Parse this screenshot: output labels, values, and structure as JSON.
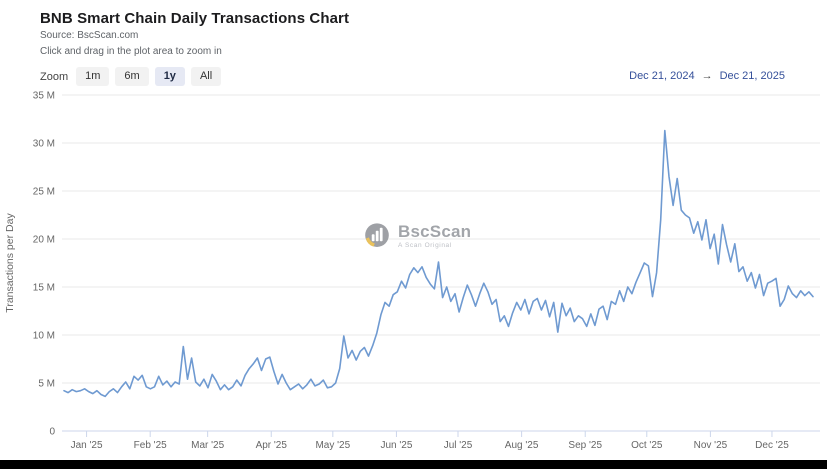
{
  "header": {
    "title": "BNB Smart Chain Daily Transactions Chart",
    "source": "Source: BscScan.com",
    "hint": "Click and drag in the plot area to zoom in"
  },
  "toolbar": {
    "zoom_label": "Zoom",
    "buttons": [
      {
        "label": "1m",
        "active": false
      },
      {
        "label": "6m",
        "active": false
      },
      {
        "label": "1y",
        "active": true
      },
      {
        "label": "All",
        "active": false
      }
    ]
  },
  "range": {
    "from": "Dec 21, 2024",
    "arrow": "→",
    "to": "Dec 21, 2025"
  },
  "watermark": {
    "name": "BscScan",
    "tagline": "A Scan Original"
  },
  "colors": {
    "line": "#6f9ad1",
    "grid": "#e9e9e9",
    "axis": "#ccd6eb",
    "tick_text": "#666666",
    "title": "#1c1c1e",
    "range_text": "#35509a",
    "watermark_gray": "#9b9ea3",
    "watermark_yellow": "#e9bd4f"
  },
  "chart_data": {
    "type": "line",
    "title": "BNB Smart Chain Daily Transactions Chart",
    "xlabel": "",
    "ylabel": "Transactions per Day",
    "unit": "millions of transactions per day",
    "ylim_millions": [
      0,
      35
    ],
    "grid": true,
    "legend": false,
    "y_ticks": [
      {
        "value": 0,
        "label": "0"
      },
      {
        "value": 5,
        "label": "5 M"
      },
      {
        "value": 10,
        "label": "10 M"
      },
      {
        "value": 15,
        "label": "15 M"
      },
      {
        "value": 20,
        "label": "20 M"
      },
      {
        "value": 25,
        "label": "25 M"
      },
      {
        "value": 30,
        "label": "30 M"
      },
      {
        "value": 35,
        "label": "35 M"
      }
    ],
    "x_ticks": [
      {
        "day": 11,
        "label": "Jan '25"
      },
      {
        "day": 42,
        "label": "Feb '25"
      },
      {
        "day": 70,
        "label": "Mar '25"
      },
      {
        "day": 101,
        "label": "Apr '25"
      },
      {
        "day": 131,
        "label": "May '25"
      },
      {
        "day": 162,
        "label": "Jun '25"
      },
      {
        "day": 192,
        "label": "Jul '25"
      },
      {
        "day": 223,
        "label": "Aug '25"
      },
      {
        "day": 254,
        "label": "Sep '25"
      },
      {
        "day": 284,
        "label": "Oct '25"
      },
      {
        "day": 315,
        "label": "Nov '25"
      },
      {
        "day": 345,
        "label": "Dec '25"
      }
    ],
    "x_range_days": 365,
    "series": [
      {
        "name": "Transactions per Day",
        "start_date": "Dec 21, 2024",
        "end_date": "Dec 21, 2025",
        "color": "#6f9ad1",
        "values_millions": [
          4.2,
          4.0,
          4.3,
          4.1,
          4.2,
          4.4,
          4.1,
          3.9,
          4.2,
          3.8,
          3.6,
          4.1,
          4.4,
          4.0,
          4.6,
          5.1,
          4.4,
          5.7,
          5.3,
          5.8,
          4.6,
          4.4,
          4.6,
          5.7,
          4.8,
          5.2,
          4.6,
          5.1,
          4.9,
          8.8,
          5.4,
          7.6,
          5.1,
          4.7,
          5.4,
          4.5,
          5.9,
          5.2,
          4.3,
          4.8,
          4.3,
          4.6,
          5.3,
          4.7,
          5.8,
          6.5,
          7.0,
          7.6,
          6.3,
          7.5,
          7.7,
          6.2,
          4.9,
          5.9,
          5.0,
          4.3,
          4.6,
          4.9,
          4.4,
          4.8,
          5.4,
          4.7,
          4.9,
          5.3,
          4.5,
          4.6,
          5.0,
          6.5,
          9.9,
          7.6,
          8.4,
          7.4,
          8.3,
          8.7,
          7.8,
          8.9,
          10.2,
          12.1,
          13.4,
          13.0,
          14.2,
          14.5,
          15.6,
          14.9,
          16.3,
          17.0,
          16.5,
          17.1,
          16.0,
          15.3,
          14.8,
          17.6,
          13.9,
          15.0,
          13.5,
          14.3,
          12.4,
          13.9,
          15.2,
          14.2,
          13.0,
          14.3,
          15.4,
          14.5,
          13.2,
          13.7,
          11.4,
          12.0,
          10.9,
          12.3,
          13.4,
          12.6,
          13.7,
          12.2,
          13.5,
          13.8,
          12.6,
          13.6,
          11.9,
          13.4,
          10.3,
          13.3,
          12.0,
          12.8,
          11.4,
          12.0,
          11.7,
          10.9,
          12.2,
          11.0,
          12.7,
          13.0,
          11.6,
          13.5,
          13.2,
          14.6,
          13.5,
          15.0,
          14.3,
          15.5,
          16.5,
          17.5,
          17.2,
          14.0,
          16.5,
          22.0,
          31.3,
          26.5,
          23.5,
          26.3,
          23.0,
          22.5,
          22.2,
          20.6,
          21.8,
          19.9,
          22.0,
          19.0,
          20.5,
          17.4,
          21.5,
          19.4,
          17.6,
          19.5,
          16.6,
          17.1,
          15.6,
          16.5,
          14.9,
          16.3,
          14.1,
          15.4,
          15.6,
          15.9,
          13.0,
          13.7,
          15.1,
          14.3,
          13.9,
          14.6,
          14.1,
          14.5,
          14.0
        ]
      }
    ]
  }
}
